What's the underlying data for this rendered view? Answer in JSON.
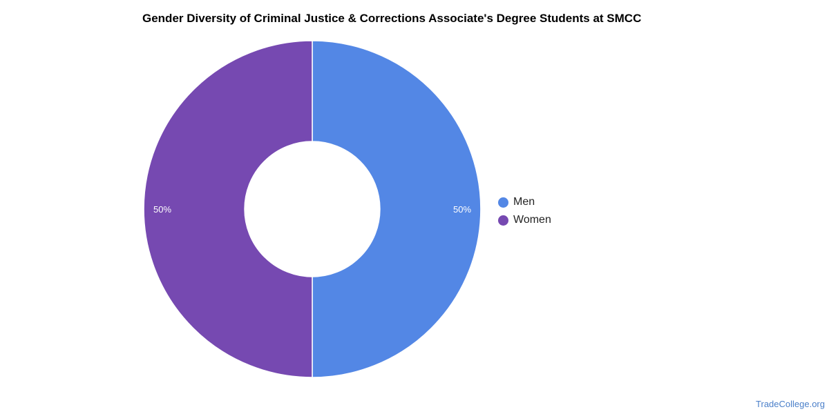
{
  "chart_data": {
    "type": "pie",
    "title": "Gender Diversity of Criminal Justice & Corrections Associate's Degree Students at SMCC",
    "categories": [
      "Men",
      "Women"
    ],
    "values": [
      50,
      50
    ],
    "labels": [
      "50%",
      "50%"
    ],
    "colors": [
      "#5387e5",
      "#7649b1"
    ],
    "donut": true,
    "legend_position": "right"
  },
  "watermark": "TradeCollege.org"
}
